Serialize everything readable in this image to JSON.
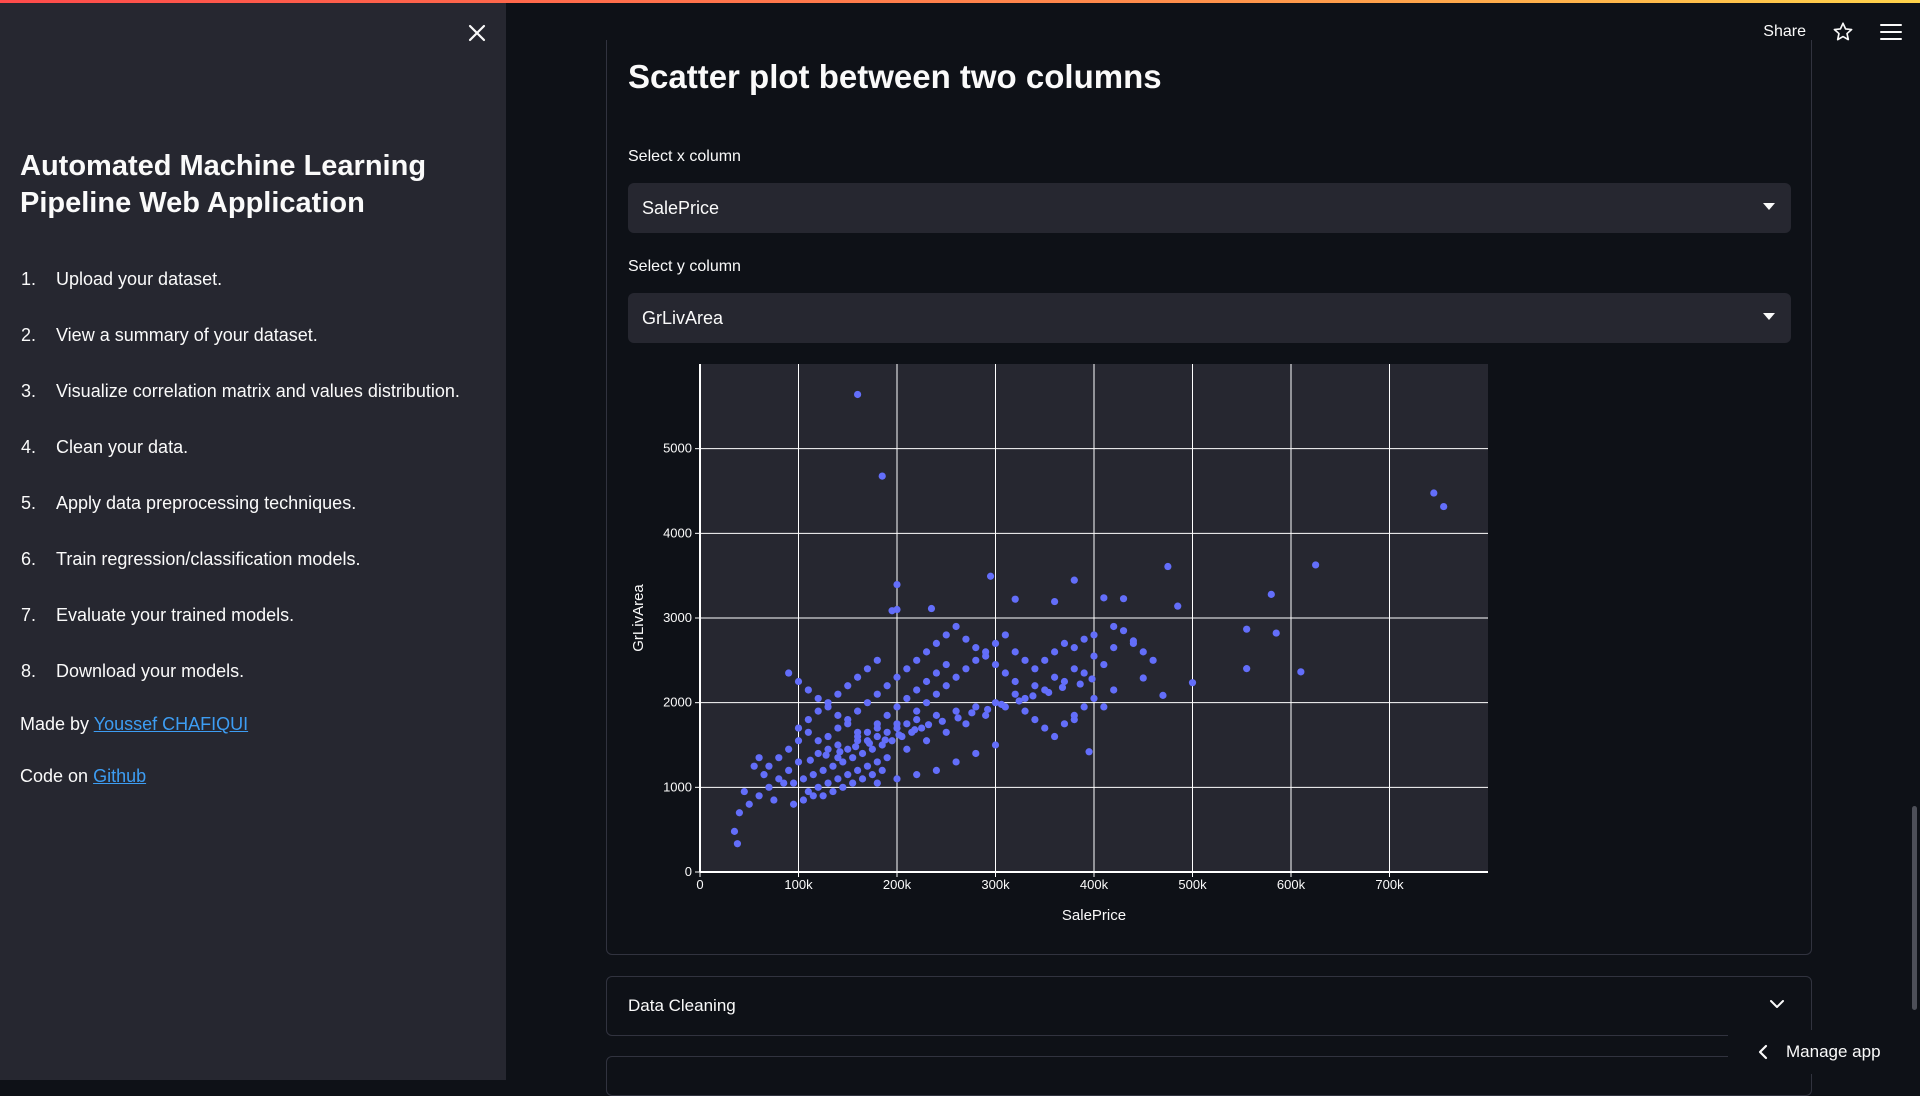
{
  "sidebar": {
    "title": "Automated Machine Learning Pipeline Web Application",
    "steps": [
      {
        "num": "1.",
        "text": "Upload your dataset."
      },
      {
        "num": "2.",
        "text": "View a summary of your dataset."
      },
      {
        "num": "3.",
        "text": "Visualize correlation matrix and values distribution."
      },
      {
        "num": "4.",
        "text": "Clean your data."
      },
      {
        "num": "5.",
        "text": "Apply data preprocessing techniques."
      },
      {
        "num": "6.",
        "text": "Train regression/classification models."
      },
      {
        "num": "7.",
        "text": "Evaluate your trained models."
      },
      {
        "num": "8.",
        "text": "Download your models."
      }
    ],
    "made_by_prefix": "Made by ",
    "made_by_link": "Youssef CHAFIQUI",
    "code_prefix": "Code on ",
    "code_link": "Github"
  },
  "header": {
    "share_label": "Share"
  },
  "main": {
    "section_title": "Scatter plot between two columns",
    "x_select": {
      "label": "Select x column",
      "value": "SalePrice"
    },
    "y_select": {
      "label": "Select y column",
      "value": "GrLivArea"
    },
    "expander_label": "Data Cleaning",
    "manage_app_label": "Manage app"
  },
  "colors": {
    "accent": "#ff4b4b",
    "point": "#636efa",
    "plot_bg": "#262730",
    "link": "#3d9df3"
  },
  "chart_data": {
    "type": "scatter",
    "xlabel": "SalePrice",
    "ylabel": "GrLivArea",
    "xlim": [
      0,
      800000
    ],
    "ylim": [
      0,
      6000
    ],
    "x_ticks": [
      0,
      100000,
      200000,
      300000,
      400000,
      500000,
      600000,
      700000
    ],
    "x_tick_labels": [
      "0",
      "100k",
      "200k",
      "300k",
      "400k",
      "500k",
      "600k",
      "700k"
    ],
    "y_ticks": [
      0,
      1000,
      2000,
      3000,
      4000,
      5000
    ],
    "y_tick_labels": [
      "0",
      "1000",
      "2000",
      "3000",
      "4000",
      "5000"
    ],
    "grid": true,
    "series": [
      {
        "points": [
          [
            160000,
            5640
          ],
          [
            185000,
            4676
          ],
          [
            745000,
            4476
          ],
          [
            755000,
            4316
          ],
          [
            625000,
            3627
          ],
          [
            475000,
            3608
          ],
          [
            580000,
            3279
          ],
          [
            295000,
            3493
          ],
          [
            380000,
            3447
          ],
          [
            200000,
            3395
          ],
          [
            195000,
            3086
          ],
          [
            200000,
            3100
          ],
          [
            235000,
            3112
          ],
          [
            320000,
            3222
          ],
          [
            360000,
            3194
          ],
          [
            410000,
            3238
          ],
          [
            430000,
            3228
          ],
          [
            485000,
            3140
          ],
          [
            555000,
            2868
          ],
          [
            585000,
            2822
          ],
          [
            610000,
            2364
          ],
          [
            555000,
            2402
          ],
          [
            500000,
            2236
          ],
          [
            470000,
            2086
          ],
          [
            450000,
            2291
          ],
          [
            440000,
            2730
          ],
          [
            420000,
            2650
          ],
          [
            400000,
            2550
          ],
          [
            380000,
            2400
          ],
          [
            360000,
            2300
          ],
          [
            340000,
            2200
          ],
          [
            320000,
            2100
          ],
          [
            300000,
            2000
          ],
          [
            280000,
            1950
          ],
          [
            260000,
            1900
          ],
          [
            240000,
            1850
          ],
          [
            220000,
            1800
          ],
          [
            200000,
            1750
          ],
          [
            180000,
            1700
          ],
          [
            160000,
            1600
          ],
          [
            140000,
            1500
          ],
          [
            120000,
            1400
          ],
          [
            100000,
            1300
          ],
          [
            90000,
            1200
          ],
          [
            80000,
            1100
          ],
          [
            70000,
            1000
          ],
          [
            60000,
            900
          ],
          [
            50000,
            800
          ],
          [
            40000,
            700
          ],
          [
            35000,
            480
          ],
          [
            38000,
            334
          ],
          [
            45000,
            950
          ],
          [
            55000,
            1250
          ],
          [
            65000,
            1150
          ],
          [
            75000,
            850
          ],
          [
            85000,
            1050
          ],
          [
            95000,
            1050
          ],
          [
            105000,
            1100
          ],
          [
            115000,
            1150
          ],
          [
            125000,
            1200
          ],
          [
            135000,
            1250
          ],
          [
            145000,
            1300
          ],
          [
            155000,
            1350
          ],
          [
            165000,
            1400
          ],
          [
            175000,
            1450
          ],
          [
            185000,
            1500
          ],
          [
            195000,
            1550
          ],
          [
            205000,
            1600
          ],
          [
            215000,
            1650
          ],
          [
            225000,
            1700
          ],
          [
            110000,
            950
          ],
          [
            120000,
            1000
          ],
          [
            130000,
            1050
          ],
          [
            140000,
            1100
          ],
          [
            150000,
            1150
          ],
          [
            160000,
            1200
          ],
          [
            170000,
            1250
          ],
          [
            180000,
            1300
          ],
          [
            190000,
            1350
          ],
          [
            210000,
            1450
          ],
          [
            230000,
            1550
          ],
          [
            250000,
            1650
          ],
          [
            270000,
            1750
          ],
          [
            290000,
            1850
          ],
          [
            310000,
            1950
          ],
          [
            330000,
            2050
          ],
          [
            350000,
            2150
          ],
          [
            370000,
            2250
          ],
          [
            390000,
            2350
          ],
          [
            410000,
            2450
          ],
          [
            130000,
            1600
          ],
          [
            140000,
            1700
          ],
          [
            150000,
            1800
          ],
          [
            160000,
            1900
          ],
          [
            170000,
            2000
          ],
          [
            180000,
            2100
          ],
          [
            190000,
            2200
          ],
          [
            200000,
            2300
          ],
          [
            210000,
            2400
          ],
          [
            220000,
            2500
          ],
          [
            230000,
            2600
          ],
          [
            240000,
            2700
          ],
          [
            250000,
            2800
          ],
          [
            260000,
            2900
          ],
          [
            270000,
            2750
          ],
          [
            280000,
            2650
          ],
          [
            290000,
            2550
          ],
          [
            300000,
            2450
          ],
          [
            310000,
            2350
          ],
          [
            320000,
            2250
          ],
          [
            330000,
            1900
          ],
          [
            340000,
            1800
          ],
          [
            350000,
            1700
          ],
          [
            360000,
            1600
          ],
          [
            370000,
            1750
          ],
          [
            380000,
            1850
          ],
          [
            390000,
            1950
          ],
          [
            395000,
            1420
          ],
          [
            300000,
            1500
          ],
          [
            280000,
            1400
          ],
          [
            260000,
            1300
          ],
          [
            240000,
            1200
          ],
          [
            220000,
            1150
          ],
          [
            200000,
            1100
          ],
          [
            180000,
            1050
          ],
          [
            100000,
            1700
          ],
          [
            110000,
            1800
          ],
          [
            120000,
            1900
          ],
          [
            130000,
            2000
          ],
          [
            140000,
            2100
          ],
          [
            150000,
            2200
          ],
          [
            160000,
            2300
          ],
          [
            170000,
            2400
          ],
          [
            180000,
            2500
          ],
          [
            90000,
            2350
          ],
          [
            100000,
            2250
          ],
          [
            110000,
            2150
          ],
          [
            120000,
            2050
          ],
          [
            130000,
            1950
          ],
          [
            140000,
            1850
          ],
          [
            150000,
            1750
          ],
          [
            160000,
            1650
          ],
          [
            170000,
            1550
          ],
          [
            180000,
            1600
          ],
          [
            190000,
            1650
          ],
          [
            200000,
            1700
          ],
          [
            210000,
            1750
          ],
          [
            220000,
            1900
          ],
          [
            230000,
            2000
          ],
          [
            240000,
            2100
          ],
          [
            250000,
            2200
          ],
          [
            260000,
            2300
          ],
          [
            270000,
            2400
          ],
          [
            280000,
            2500
          ],
          [
            290000,
            2600
          ],
          [
            300000,
            2700
          ],
          [
            310000,
            2800
          ],
          [
            320000,
            2600
          ],
          [
            330000,
            2500
          ],
          [
            340000,
            2400
          ],
          [
            350000,
            2500
          ],
          [
            360000,
            2600
          ],
          [
            370000,
            2700
          ],
          [
            380000,
            2650
          ],
          [
            390000,
            2750
          ],
          [
            400000,
            2800
          ],
          [
            420000,
            2900
          ],
          [
            430000,
            2850
          ],
          [
            440000,
            2700
          ],
          [
            450000,
            2600
          ],
          [
            460000,
            2500
          ],
          [
            420000,
            2150
          ],
          [
            400000,
            2050
          ],
          [
            410000,
            1950
          ],
          [
            380000,
            1800
          ],
          [
            60000,
            1350
          ],
          [
            70000,
            1250
          ],
          [
            80000,
            1350
          ],
          [
            90000,
            1450
          ],
          [
            100000,
            1550
          ],
          [
            110000,
            1650
          ],
          [
            120000,
            1550
          ],
          [
            130000,
            1450
          ],
          [
            140000,
            1350
          ],
          [
            150000,
            1450
          ],
          [
            160000,
            1550
          ],
          [
            170000,
            1650
          ],
          [
            180000,
            1750
          ],
          [
            190000,
            1850
          ],
          [
            200000,
            1950
          ],
          [
            210000,
            2050
          ],
          [
            220000,
            2150
          ],
          [
            230000,
            2250
          ],
          [
            240000,
            2350
          ],
          [
            250000,
            2450
          ],
          [
            95000,
            800
          ],
          [
            105000,
            850
          ],
          [
            115000,
            900
          ],
          [
            125000,
            900
          ],
          [
            135000,
            950
          ],
          [
            145000,
            1000
          ],
          [
            155000,
            1050
          ],
          [
            165000,
            1100
          ],
          [
            175000,
            1150
          ],
          [
            185000,
            1200
          ],
          [
            112000,
            1320
          ],
          [
            128000,
            1380
          ],
          [
            142000,
            1420
          ],
          [
            158000,
            1480
          ],
          [
            172000,
            1520
          ],
          [
            188000,
            1560
          ],
          [
            202000,
            1620
          ],
          [
            218000,
            1680
          ],
          [
            232000,
            1740
          ],
          [
            246000,
            1780
          ],
          [
            262000,
            1820
          ],
          [
            276000,
            1880
          ],
          [
            292000,
            1920
          ],
          [
            306000,
            1980
          ],
          [
            324000,
            2020
          ],
          [
            338000,
            2080
          ],
          [
            354000,
            2120
          ],
          [
            368000,
            2180
          ],
          [
            386000,
            2220
          ],
          [
            398000,
            2280
          ]
        ]
      }
    ]
  }
}
